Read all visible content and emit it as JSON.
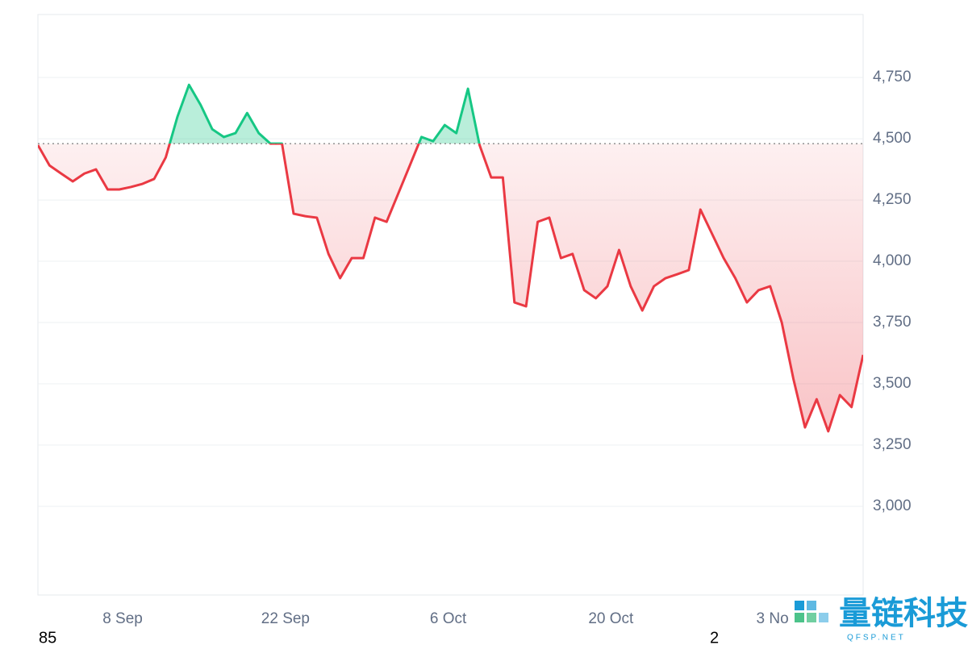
{
  "chart_data": {
    "type": "line",
    "series": [
      {
        "name": "Price",
        "color_up": "#16c784",
        "color_down": "#ea3943",
        "values": [
          4474,
          4391,
          4358,
          4326,
          4358,
          4375,
          4293,
          4293,
          4303,
          4316,
          4336,
          4424,
          4589,
          4720,
          4638,
          4539,
          4507,
          4523,
          4605,
          4523,
          4480,
          4480,
          4194,
          4184,
          4178,
          4030,
          3931,
          4013,
          4013,
          4178,
          4161,
          4276,
          4391,
          4507,
          4490,
          4556,
          4523,
          4704,
          4474,
          4342,
          4342,
          3832,
          3816,
          4161,
          4178,
          4013,
          4030,
          3882,
          3849,
          3898,
          4046,
          3898,
          3799,
          3898,
          3931,
          3947,
          3964,
          4211,
          4112,
          4013,
          3931,
          3832,
          3882,
          3898,
          3750,
          3520,
          3322,
          3437,
          3306,
          3454,
          3405,
          3618
        ]
      }
    ],
    "baseline": 4480,
    "xlim": [
      0,
      71
    ],
    "xticks": [
      {
        "value": 7.29,
        "label": "8 Sep"
      },
      {
        "value": 21.3,
        "label": "22 Sep"
      },
      {
        "value": 35.3,
        "label": "6 Oct"
      },
      {
        "value": 49.3,
        "label": "20 Oct"
      },
      {
        "value": 63.2,
        "label": "3 No"
      }
    ],
    "ylim": [
      2638,
      5007
    ],
    "yticks": [
      {
        "value": 3000,
        "label": "3,000"
      },
      {
        "value": 3250,
        "label": "3,250"
      },
      {
        "value": 3500,
        "label": "3,500"
      },
      {
        "value": 3750,
        "label": "3,750"
      },
      {
        "value": 4000,
        "label": "4,000"
      },
      {
        "value": 4250,
        "label": "4,250"
      },
      {
        "value": 4500,
        "label": "4,500"
      },
      {
        "value": 4750,
        "label": "4,750"
      }
    ],
    "grid": true,
    "footer_labels": [
      "85",
      "2"
    ]
  },
  "watermark": {
    "title": "量链科技",
    "subtitle": "QFSP.NET"
  }
}
